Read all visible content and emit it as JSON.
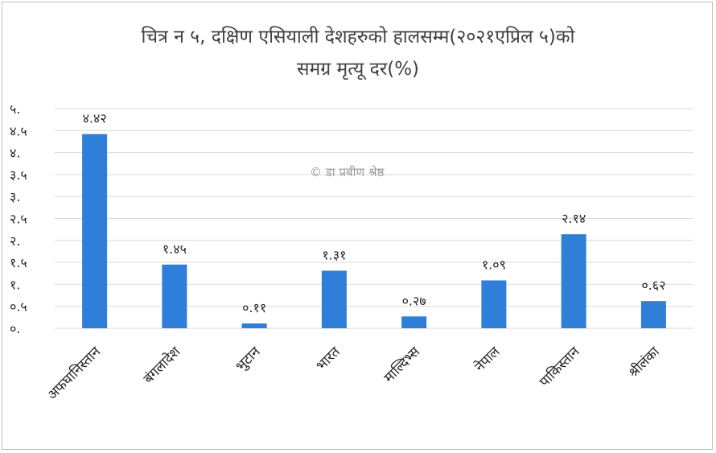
{
  "chart_data": {
    "type": "bar",
    "title_line1": "चित्र न ५, दक्षिण एसियाली देशहरुको हालसम्म(२०२१एप्रिल ५)को",
    "title_line2": "समग्र मृत्यू दर(%)",
    "categories": [
      "अफघानिस्तान",
      "बंगलादेश",
      "भुटान",
      "भारत",
      "माल्दिभ्स",
      "नेपाल",
      "पाकिस्तान",
      "श्रीलंका"
    ],
    "values": [
      4.42,
      1.45,
      0.11,
      1.31,
      0.27,
      1.09,
      2.14,
      0.62
    ],
    "value_labels": [
      "४.४२",
      "१.४५",
      "०.११",
      "१.३१",
      "०.२७",
      "१.०९",
      "२.१४",
      "०.६२"
    ],
    "y_ticks": [
      0,
      0.5,
      1,
      1.5,
      2,
      2.5,
      3,
      3.5,
      4,
      4.5,
      5
    ],
    "y_tick_labels": [
      "०.",
      "०.५",
      "१.",
      "१.५",
      "२.",
      "२.५",
      "३.",
      "३.५",
      "४.",
      "४.५",
      "५."
    ],
    "ylim": [
      0,
      5
    ],
    "grid": true,
    "bar_color": "#2f7ed8",
    "watermark": "© डा प्रबीण श्रेष्ठ"
  }
}
